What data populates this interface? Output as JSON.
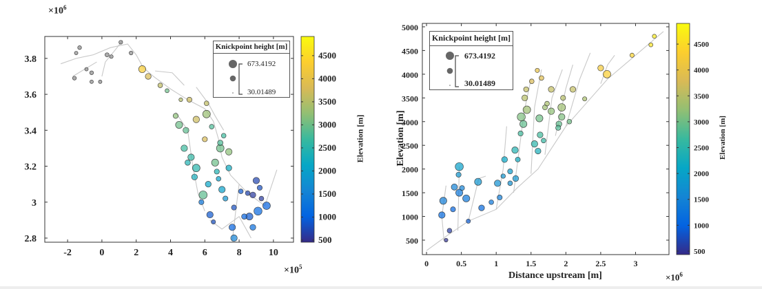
{
  "panels": [
    {
      "xexp": "×10",
      "xexp_pow": "5",
      "yexp": "×10",
      "yexp_pow": "6",
      "colorbar_label": "Elevation [m]",
      "legend": {
        "title": "Knickpoint height [m]",
        "max": "673.4192",
        "min": "30.01489"
      }
    },
    {
      "xlabel": "Distance upstream [m]",
      "ylabel": "Elevation [m]",
      "xexp": "×10",
      "xexp_pow": "6",
      "colorbar_label": "Elevation [m]",
      "legend": {
        "title": "Knickpoint height [m]",
        "max": "673.4192",
        "min": "30.01489"
      }
    }
  ],
  "chart_data": [
    {
      "type": "scatter",
      "title": "",
      "xlabel": "",
      "ylabel": "",
      "x_units": "1e5 m",
      "y_units": "1e6 m",
      "xlim": [
        -3.33,
        11.17
      ],
      "ylim": [
        2.777,
        3.922
      ],
      "xticks": [
        -2,
        0,
        2,
        4,
        6,
        8,
        10
      ],
      "xtick_labels": [
        "-2",
        "0",
        "2",
        "4",
        "6",
        "8",
        "10"
      ],
      "yticks": [
        2.8,
        3.0,
        3.2,
        3.4,
        3.6,
        3.8
      ],
      "ytick_labels": [
        "2.8",
        "3",
        "3.2",
        "3.4",
        "3.6",
        "3.8"
      ],
      "colorbar": {
        "label": "Elevation [m]",
        "range": [
          455,
          4916
        ],
        "ticks": [
          500,
          1000,
          1500,
          2000,
          2500,
          3000,
          3500,
          4000,
          4500
        ],
        "colormap": "parula"
      },
      "size_legend": {
        "title": "Knickpoint height [m]",
        "max": 673.4192,
        "min": 30.01489,
        "placement": "top-right"
      },
      "grid": false,
      "points_fields": [
        "x",
        "y",
        "elevation",
        "knickpoint_height"
      ],
      "points": [
        [
          -1.3,
          3.86,
          null,
          40
        ],
        [
          -1.6,
          3.69,
          null,
          40
        ],
        [
          -0.6,
          3.72,
          null,
          40
        ],
        [
          0.3,
          3.82,
          null,
          50
        ],
        [
          1.1,
          3.89,
          null,
          40
        ],
        [
          1.7,
          3.83,
          null,
          40
        ],
        [
          -0.6,
          3.67,
          null,
          30
        ],
        [
          -0.1,
          3.67,
          null,
          30
        ],
        [
          -1.5,
          3.83,
          null,
          30
        ],
        [
          0.55,
          3.81,
          null,
          35
        ],
        [
          -0.9,
          3.74,
          null,
          30
        ],
        [
          2.35,
          3.74,
          4300,
          250
        ],
        [
          2.7,
          3.7,
          3800,
          150
        ],
        [
          3.4,
          3.65,
          3600,
          80
        ],
        [
          5.1,
          3.57,
          3700,
          100
        ],
        [
          6.1,
          3.55,
          3600,
          80
        ],
        [
          6.1,
          3.49,
          3300,
          300
        ],
        [
          5.5,
          3.46,
          3700,
          200
        ],
        [
          4.3,
          3.48,
          3200,
          100
        ],
        [
          4.5,
          3.43,
          3000,
          250
        ],
        [
          4.9,
          3.4,
          2900,
          150
        ],
        [
          6.0,
          3.35,
          3800,
          100
        ],
        [
          6.9,
          3.3,
          3000,
          300
        ],
        [
          7.4,
          3.28,
          3200,
          200
        ],
        [
          4.8,
          3.3,
          2700,
          200
        ],
        [
          5.2,
          3.25,
          2600,
          200
        ],
        [
          6.6,
          3.22,
          3000,
          250
        ],
        [
          5.5,
          3.19,
          2500,
          300
        ],
        [
          5.4,
          3.14,
          2300,
          150
        ],
        [
          7.4,
          3.19,
          2200,
          150
        ],
        [
          6.7,
          3.17,
          2400,
          100
        ],
        [
          6.2,
          3.1,
          2100,
          150
        ],
        [
          7.0,
          3.07,
          2000,
          200
        ],
        [
          5.9,
          3.04,
          2900,
          350
        ],
        [
          9.0,
          3.12,
          700,
          200
        ],
        [
          8.8,
          3.04,
          600,
          150
        ],
        [
          9.6,
          2.98,
          1000,
          300
        ],
        [
          9.1,
          2.95,
          1100,
          350
        ],
        [
          6.3,
          2.93,
          900,
          200
        ],
        [
          7.7,
          2.97,
          800,
          100
        ],
        [
          8.6,
          2.92,
          900,
          250
        ],
        [
          8.8,
          2.86,
          1200,
          150
        ],
        [
          7.6,
          2.86,
          1000,
          200
        ],
        [
          7.7,
          2.8,
          1500,
          200
        ],
        [
          6.5,
          2.89,
          800,
          60
        ],
        [
          8.5,
          3.05,
          700,
          80
        ],
        [
          5.8,
          3.0,
          1300,
          100
        ],
        [
          6.8,
          3.13,
          2000,
          80
        ],
        [
          8.1,
          3.06,
          900,
          80
        ],
        [
          9.3,
          3.02,
          600,
          80
        ],
        [
          7.1,
          3.37,
          2700,
          80
        ],
        [
          6.4,
          3.42,
          2800,
          80
        ],
        [
          3.8,
          3.62,
          3000,
          50
        ],
        [
          4.6,
          3.57,
          3500,
          40
        ],
        [
          5.0,
          3.22,
          2400,
          120
        ],
        [
          6.9,
          3.33,
          2800,
          120
        ],
        [
          7.2,
          3.02,
          1800,
          100
        ],
        [
          8.3,
          2.92,
          1000,
          120
        ],
        [
          9.2,
          3.08,
          800,
          100
        ]
      ],
      "streams": [
        [
          [
            -2.4,
            3.77
          ],
          [
            -1.5,
            3.8
          ],
          [
            -0.5,
            3.82
          ],
          [
            0.5,
            3.86
          ],
          [
            1.5,
            3.88
          ],
          [
            2.0,
            3.82
          ],
          [
            2.4,
            3.75
          ],
          [
            3.0,
            3.7
          ],
          [
            4.0,
            3.63
          ],
          [
            5.0,
            3.57
          ],
          [
            6.0,
            3.52
          ],
          [
            6.5,
            3.45
          ],
          [
            6.8,
            3.35
          ],
          [
            7.0,
            3.25
          ],
          [
            7.5,
            3.15
          ],
          [
            8.5,
            3.05
          ],
          [
            9.5,
            2.98
          ],
          [
            10.2,
            3.18
          ]
        ],
        [
          [
            -1.7,
            3.7
          ],
          [
            -1.0,
            3.74
          ],
          [
            -0.3,
            3.78
          ]
        ],
        [
          [
            0.0,
            3.7
          ],
          [
            0.2,
            3.78
          ],
          [
            0.8,
            3.85
          ],
          [
            1.2,
            3.9
          ]
        ],
        [
          [
            1.0,
            3.92
          ],
          [
            0.5,
            3.94
          ]
        ],
        [
          [
            4.3,
            3.5
          ],
          [
            5.0,
            3.4
          ],
          [
            5.3,
            3.2
          ],
          [
            5.6,
            3.05
          ],
          [
            6.0,
            2.95
          ]
        ],
        [
          [
            6.3,
            2.9
          ],
          [
            7.0,
            2.85
          ],
          [
            8.0,
            2.92
          ],
          [
            8.7,
            2.8
          ]
        ],
        [
          [
            8.0,
            3.1
          ],
          [
            7.8,
            2.95
          ],
          [
            7.6,
            2.78
          ]
        ],
        [
          [
            5.5,
            3.64
          ],
          [
            6.2,
            3.55
          ],
          [
            6.6,
            3.48
          ],
          [
            7.1,
            3.4
          ]
        ],
        [
          [
            3.1,
            3.73
          ],
          [
            4.1,
            3.72
          ],
          [
            4.8,
            3.65
          ]
        ]
      ]
    },
    {
      "type": "scatter",
      "title": "",
      "xlabel": "Distance upstream [m]",
      "ylabel": "Elevation [m]",
      "x_units": "1e6 m",
      "y_units": "m",
      "xlim": [
        -0.06,
        3.48
      ],
      "ylim": [
        195,
        5072
      ],
      "xticks": [
        0,
        0.5,
        1,
        1.5,
        2,
        2.5,
        3
      ],
      "xtick_labels": [
        "0",
        "0.5",
        "1",
        "1.5",
        "2",
        "2.5",
        "3"
      ],
      "yticks": [
        500,
        1000,
        1500,
        2000,
        2500,
        3000,
        3500,
        4000,
        4500,
        5000
      ],
      "ytick_labels": [
        "500",
        "1000",
        "1500",
        "2000",
        "2500",
        "3000",
        "3500",
        "4000",
        "4500",
        "5000"
      ],
      "colorbar": {
        "label": "Elevation [m]",
        "range": [
          433,
          4900
        ],
        "ticks": [
          500,
          1000,
          1500,
          2000,
          2500,
          3000,
          3500,
          4000,
          4500
        ],
        "colormap": "parula"
      },
      "size_legend": {
        "title": "Knickpoint height [m]",
        "max": 673.4192,
        "min": 30.01489,
        "placement": "top-left"
      },
      "grid": false,
      "points_fields": [
        "x",
        "y",
        "elevation",
        "knickpoint_height"
      ],
      "points": [
        [
          0.47,
          2050,
          2000,
          350
        ],
        [
          0.24,
          1330,
          1400,
          250
        ],
        [
          0.22,
          1030,
          1100,
          200
        ],
        [
          0.4,
          1620,
          1500,
          180
        ],
        [
          0.47,
          1500,
          1300,
          250
        ],
        [
          0.57,
          1380,
          1300,
          250
        ],
        [
          0.74,
          1730,
          1800,
          250
        ],
        [
          0.79,
          1180,
          1100,
          150
        ],
        [
          0.46,
          1880,
          1800,
          100
        ],
        [
          0.38,
          1150,
          1000,
          100
        ],
        [
          0.33,
          700,
          600,
          80
        ],
        [
          0.28,
          500,
          500,
          40
        ],
        [
          1.02,
          1700,
          1700,
          200
        ],
        [
          1.12,
          2200,
          2100,
          150
        ],
        [
          1.28,
          1800,
          1800,
          150
        ],
        [
          1.2,
          1950,
          1900,
          100
        ],
        [
          1.27,
          2400,
          2400,
          200
        ],
        [
          1.36,
          3100,
          3100,
          350
        ],
        [
          1.39,
          2950,
          2900,
          250
        ],
        [
          1.44,
          3250,
          3300,
          300
        ],
        [
          1.41,
          3500,
          3500,
          150
        ],
        [
          1.43,
          3680,
          3600,
          100
        ],
        [
          1.51,
          3850,
          3800,
          80
        ],
        [
          1.59,
          4080,
          4000,
          60
        ],
        [
          1.65,
          3920,
          3900,
          80
        ],
        [
          1.55,
          2530,
          2500,
          200
        ],
        [
          1.6,
          2380,
          2300,
          150
        ],
        [
          1.62,
          3070,
          3000,
          250
        ],
        [
          1.79,
          3220,
          3200,
          200
        ],
        [
          1.79,
          3680,
          3600,
          150
        ],
        [
          1.94,
          3300,
          3300,
          300
        ],
        [
          1.94,
          3100,
          3100,
          200
        ],
        [
          1.9,
          2950,
          2900,
          150
        ],
        [
          1.89,
          2870,
          2800,
          100
        ],
        [
          2.1,
          3680,
          3600,
          150
        ],
        [
          1.96,
          3500,
          3500,
          100
        ],
        [
          1.73,
          3380,
          3400,
          80
        ],
        [
          2.5,
          4130,
          4200,
          150
        ],
        [
          2.59,
          4000,
          4300,
          300
        ],
        [
          2.27,
          3480,
          3400,
          60
        ],
        [
          2.95,
          4400,
          4400,
          60
        ],
        [
          3.22,
          4620,
          4600,
          50
        ],
        [
          3.27,
          4800,
          4700,
          50
        ],
        [
          1.05,
          1400,
          1400,
          100
        ],
        [
          0.93,
          1300,
          1300,
          80
        ],
        [
          1.2,
          1700,
          1700,
          80
        ],
        [
          0.6,
          900,
          900,
          60
        ],
        [
          1.35,
          2750,
          2700,
          100
        ],
        [
          1.63,
          2720,
          2700,
          150
        ],
        [
          1.68,
          2600,
          2600,
          80
        ],
        [
          1.1,
          1850,
          1800,
          70
        ],
        [
          1.31,
          2200,
          2200,
          90
        ],
        [
          1.7,
          3300,
          3300,
          90
        ],
        [
          2.05,
          3000,
          3000,
          80
        ],
        [
          0.51,
          1600,
          1500,
          90
        ]
      ],
      "streams": [
        [
          [
            0,
            280
          ],
          [
            0.3,
            600
          ],
          [
            0.6,
            900
          ],
          [
            1.0,
            1150
          ],
          [
            1.3,
            1600
          ],
          [
            1.6,
            2000
          ],
          [
            2.0,
            2900
          ],
          [
            2.3,
            3400
          ],
          [
            2.6,
            3900
          ],
          [
            3.0,
            4400
          ],
          [
            3.4,
            4900
          ]
        ],
        [
          [
            0.25,
            500
          ],
          [
            0.22,
            1000
          ],
          [
            0.28,
            1650
          ]
        ],
        [
          [
            0.45,
            700
          ],
          [
            0.47,
            2050
          ]
        ],
        [
          [
            0.6,
            900
          ],
          [
            0.75,
            1800
          ],
          [
            0.85,
            1850
          ]
        ],
        [
          [
            1.0,
            1150
          ],
          [
            1.1,
            2000
          ],
          [
            1.15,
            2900
          ]
        ],
        [
          [
            1.25,
            1500
          ],
          [
            1.4,
            3200
          ],
          [
            1.5,
            3900
          ]
        ],
        [
          [
            1.5,
            1900
          ],
          [
            1.55,
            3300
          ],
          [
            1.65,
            4100
          ]
        ],
        [
          [
            1.7,
            2300
          ],
          [
            1.8,
            3500
          ],
          [
            1.95,
            4100
          ]
        ],
        [
          [
            1.85,
            2700
          ],
          [
            2.0,
            3700
          ],
          [
            2.1,
            4200
          ]
        ],
        [
          [
            2.0,
            2900
          ],
          [
            2.2,
            3900
          ],
          [
            2.35,
            4450
          ]
        ],
        [
          [
            2.5,
            3800
          ],
          [
            2.6,
            4200
          ],
          [
            2.7,
            4400
          ]
        ]
      ]
    }
  ]
}
